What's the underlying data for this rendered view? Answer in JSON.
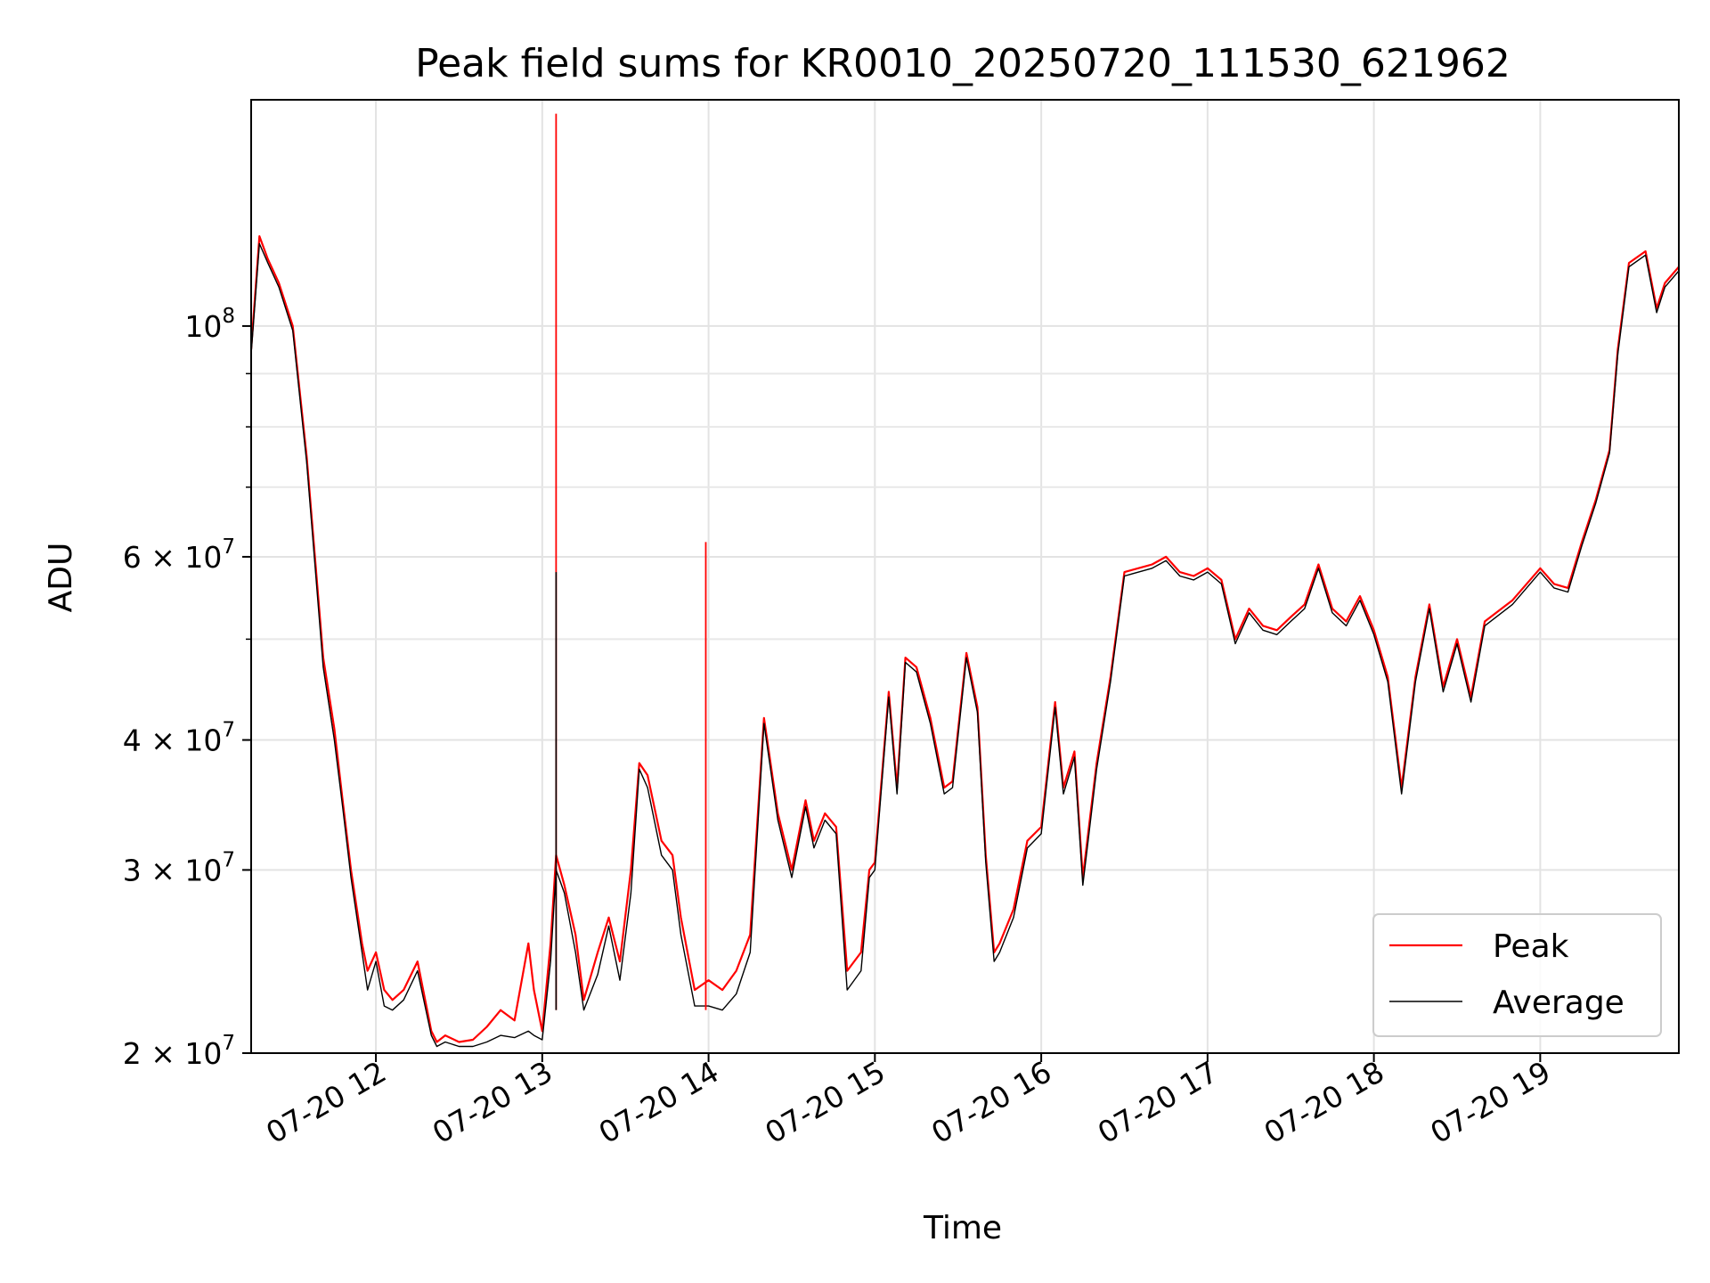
{
  "chart_data": {
    "type": "line",
    "title": "Peak field sums for KR0010_20250720_111530_621962",
    "xlabel": "Time",
    "ylabel": "ADU",
    "yscale": "log",
    "ylim": [
      20000000,
      165000000
    ],
    "xlim": [
      "2025-07-20 11:15",
      "2025-07-20 19:50"
    ],
    "grid": true,
    "legend_position": "lower-right",
    "x_ticks": [
      "2025-07-20 12:00",
      "2025-07-20 13:00",
      "2025-07-20 14:00",
      "2025-07-20 15:00",
      "2025-07-20 16:00",
      "2025-07-20 17:00",
      "2025-07-20 18:00",
      "2025-07-20 19:00"
    ],
    "x_tick_labels": [
      "07-20 12",
      "07-20 13",
      "07-20 14",
      "07-20 15",
      "07-20 16",
      "07-20 17",
      "07-20 18",
      "07-20 19"
    ],
    "y_ticks": [
      20000000,
      30000000,
      40000000,
      60000000,
      100000000
    ],
    "y_tick_labels": [
      {
        "mantissa": "2",
        "exp": "7"
      },
      {
        "mantissa": "3",
        "exp": "7"
      },
      {
        "mantissa": "4",
        "exp": "7"
      },
      {
        "mantissa": "6",
        "exp": "7"
      },
      {
        "mantissa": "",
        "exp": "8"
      }
    ],
    "y_minor_ticks": [
      50000000,
      70000000,
      80000000,
      90000000
    ],
    "x": [
      "2025-07-20 11:15",
      "2025-07-20 11:18",
      "2025-07-20 11:21",
      "2025-07-20 11:25",
      "2025-07-20 11:30",
      "2025-07-20 11:35",
      "2025-07-20 11:38",
      "2025-07-20 11:41",
      "2025-07-20 11:45",
      "2025-07-20 11:48",
      "2025-07-20 11:51",
      "2025-07-20 11:55",
      "2025-07-20 11:57",
      "2025-07-20 12:00",
      "2025-07-20 12:03",
      "2025-07-20 12:06",
      "2025-07-20 12:10",
      "2025-07-20 12:15",
      "2025-07-20 12:20",
      "2025-07-20 12:22",
      "2025-07-20 12:25",
      "2025-07-20 12:30",
      "2025-07-20 12:35",
      "2025-07-20 12:40",
      "2025-07-20 12:45",
      "2025-07-20 12:50",
      "2025-07-20 12:55",
      "2025-07-20 12:57",
      "2025-07-20 13:00",
      "2025-07-20 13:03",
      "2025-07-20 13:05",
      "2025-07-20 13:08",
      "2025-07-20 13:12",
      "2025-07-20 13:15",
      "2025-07-20 13:20",
      "2025-07-20 13:24",
      "2025-07-20 13:28",
      "2025-07-20 13:32",
      "2025-07-20 13:35",
      "2025-07-20 13:38",
      "2025-07-20 13:43",
      "2025-07-20 13:47",
      "2025-07-20 13:50",
      "2025-07-20 13:55",
      "2025-07-20 14:00",
      "2025-07-20 14:05",
      "2025-07-20 14:10",
      "2025-07-20 14:15",
      "2025-07-20 14:20",
      "2025-07-20 14:25",
      "2025-07-20 14:30",
      "2025-07-20 14:35",
      "2025-07-20 14:38",
      "2025-07-20 14:42",
      "2025-07-20 14:46",
      "2025-07-20 14:50",
      "2025-07-20 14:55",
      "2025-07-20 14:58",
      "2025-07-20 15:00",
      "2025-07-20 15:05",
      "2025-07-20 15:08",
      "2025-07-20 15:11",
      "2025-07-20 15:15",
      "2025-07-20 15:20",
      "2025-07-20 15:25",
      "2025-07-20 15:28",
      "2025-07-20 15:33",
      "2025-07-20 15:37",
      "2025-07-20 15:40",
      "2025-07-20 15:43",
      "2025-07-20 15:45",
      "2025-07-20 15:50",
      "2025-07-20 15:55",
      "2025-07-20 16:00",
      "2025-07-20 16:05",
      "2025-07-20 16:08",
      "2025-07-20 16:12",
      "2025-07-20 16:15",
      "2025-07-20 16:20",
      "2025-07-20 16:25",
      "2025-07-20 16:30",
      "2025-07-20 16:40",
      "2025-07-20 16:45",
      "2025-07-20 16:50",
      "2025-07-20 16:55",
      "2025-07-20 17:00",
      "2025-07-20 17:05",
      "2025-07-20 17:10",
      "2025-07-20 17:15",
      "2025-07-20 17:20",
      "2025-07-20 17:25",
      "2025-07-20 17:30",
      "2025-07-20 17:35",
      "2025-07-20 17:40",
      "2025-07-20 17:45",
      "2025-07-20 17:50",
      "2025-07-20 17:55",
      "2025-07-20 18:00",
      "2025-07-20 18:05",
      "2025-07-20 18:10",
      "2025-07-20 18:15",
      "2025-07-20 18:20",
      "2025-07-20 18:25",
      "2025-07-20 18:30",
      "2025-07-20 18:35",
      "2025-07-20 18:40",
      "2025-07-20 18:50",
      "2025-07-20 19:00",
      "2025-07-20 19:05",
      "2025-07-20 19:10",
      "2025-07-20 19:15",
      "2025-07-20 19:20",
      "2025-07-20 19:25",
      "2025-07-20 19:28",
      "2025-07-20 19:32",
      "2025-07-20 19:38",
      "2025-07-20 19:42",
      "2025-07-20 19:45",
      "2025-07-20 19:50"
    ],
    "series": [
      {
        "name": "Peak",
        "color": "#ff0000",
        "values": [
          95000000,
          122000000,
          116000000,
          110000000,
          100000000,
          75000000,
          60000000,
          48000000,
          41000000,
          35000000,
          30000000,
          25500000,
          24000000,
          25000000,
          23000000,
          22500000,
          23000000,
          24500000,
          21000000,
          20500000,
          20800000,
          20500000,
          20600000,
          21200000,
          22000000,
          21500000,
          25500000,
          23000000,
          21000000,
          25500000,
          31000000,
          29000000,
          26000000,
          22500000,
          25000000,
          27000000,
          24500000,
          30000000,
          38000000,
          37000000,
          32000000,
          31000000,
          27000000,
          23000000,
          23500000,
          23000000,
          24000000,
          26000000,
          42000000,
          34000000,
          30000000,
          35000000,
          32000000,
          34000000,
          33000000,
          24000000,
          25000000,
          30000000,
          30500000,
          44500000,
          36000000,
          48000000,
          47000000,
          42000000,
          36000000,
          36500000,
          48500000,
          43000000,
          31000000,
          25000000,
          25500000,
          27500000,
          32000000,
          33000000,
          43500000,
          36000000,
          39000000,
          29500000,
          38000000,
          46000000,
          58000000,
          59000000,
          60000000,
          58000000,
          57500000,
          58500000,
          57000000,
          50000000,
          53500000,
          51500000,
          51000000,
          52500000,
          54000000,
          59000000,
          53500000,
          52000000,
          55000000,
          51000000,
          46000000,
          36000000,
          46000000,
          54000000,
          45000000,
          50000000,
          44000000,
          52000000,
          54500000,
          58500000,
          56500000,
          56000000,
          62000000,
          68000000,
          76000000,
          95000000,
          115000000,
          118000000,
          104000000,
          110000000,
          114000000
        ]
      },
      {
        "name": "Average",
        "color": "#000000",
        "values": [
          94000000,
          120000000,
          115000000,
          109000000,
          99000000,
          74000000,
          59000000,
          47000000,
          40000000,
          34500000,
          29500000,
          25000000,
          23000000,
          24500000,
          22200000,
          22000000,
          22500000,
          24000000,
          20800000,
          20300000,
          20500000,
          20300000,
          20300000,
          20500000,
          20800000,
          20700000,
          21000000,
          20800000,
          20600000,
          24500000,
          30000000,
          28500000,
          25000000,
          22000000,
          23800000,
          26500000,
          23500000,
          28500000,
          37500000,
          36000000,
          31000000,
          30000000,
          26000000,
          22200000,
          22200000,
          22000000,
          22800000,
          25000000,
          41500000,
          33500000,
          29500000,
          34500000,
          31500000,
          33500000,
          32500000,
          23000000,
          24000000,
          29500000,
          30000000,
          44000000,
          35500000,
          47500000,
          46500000,
          41500000,
          35500000,
          36000000,
          48000000,
          42500000,
          30500000,
          24500000,
          25000000,
          27000000,
          31500000,
          32500000,
          43000000,
          35500000,
          38500000,
          29000000,
          37500000,
          45500000,
          57500000,
          58500000,
          59500000,
          57500000,
          57000000,
          58000000,
          56500000,
          49500000,
          53000000,
          51000000,
          50500000,
          52000000,
          53500000,
          58500000,
          53000000,
          51500000,
          54500000,
          50500000,
          45500000,
          35500000,
          45500000,
          53500000,
          44500000,
          49500000,
          43500000,
          51500000,
          54000000,
          58000000,
          56000000,
          55500000,
          61500000,
          67500000,
          75500000,
          94000000,
          114000000,
          117000000,
          103000000,
          109000000,
          113000000
        ]
      }
    ],
    "spikes": [
      {
        "series": "Peak",
        "x": "2025-07-20 13:05",
        "value": 160000000
      },
      {
        "series": "Average",
        "x": "2025-07-20 13:05",
        "value": 58000000
      },
      {
        "series": "Peak",
        "x": "2025-07-20 13:59",
        "value": 62000000
      }
    ]
  }
}
